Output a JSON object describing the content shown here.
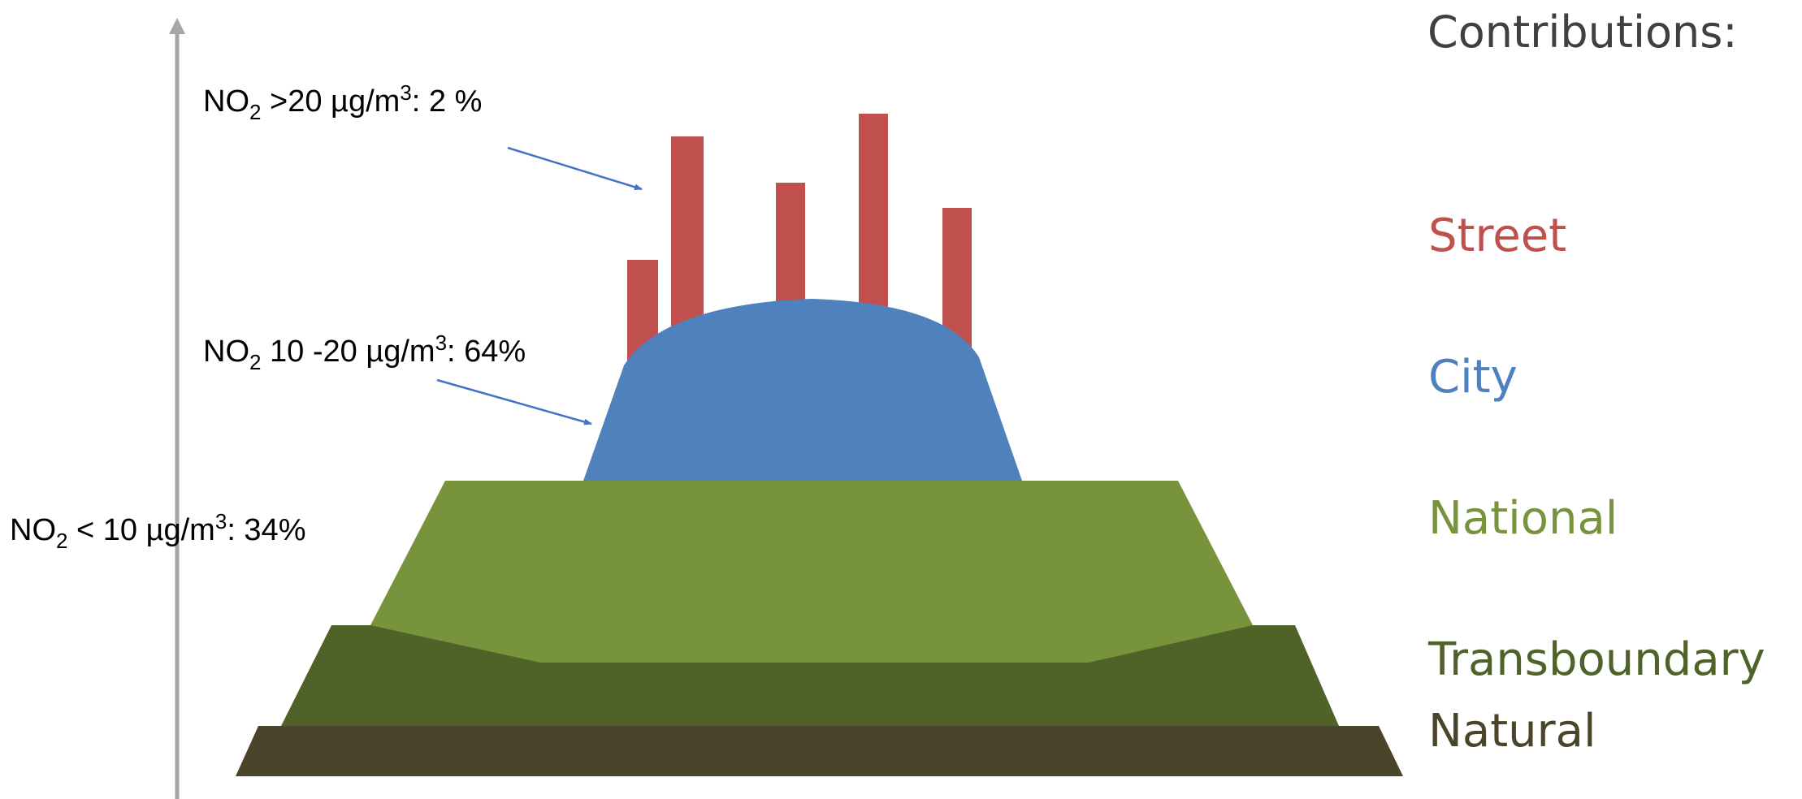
{
  "annotations": {
    "high": {
      "species": "NO",
      "sub": "2",
      "text_a": " >20 µg/m",
      "sup": "3",
      "text_b": ":  2 %"
    },
    "mid": {
      "species": "NO",
      "sub": "2",
      "text_a": "  10 -20 µg/m",
      "sup": "3",
      "text_b": ":  64%"
    },
    "low": {
      "species": "NO",
      "sub": "2",
      "text_a": "  < 10 µg/m",
      "sup": "3",
      "text_b": ":  34%"
    }
  },
  "legend": {
    "title": "Contributions:",
    "items": [
      {
        "label": "Street",
        "color": "#c0504d"
      },
      {
        "label": "City",
        "color": "#4f81bd"
      },
      {
        "label": "National",
        "color": "#77933c"
      },
      {
        "label": "Transboundary",
        "color": "#4f6228"
      },
      {
        "label": "Natural",
        "color": "#4a442a"
      }
    ]
  },
  "colors": {
    "street": "#c0504d",
    "city": "#4f81bd",
    "national": "#77933c",
    "transboundary": "#4f6228",
    "natural": "#4a442a",
    "axis": "#a6a6a6",
    "arrow": "#4472c4"
  }
}
